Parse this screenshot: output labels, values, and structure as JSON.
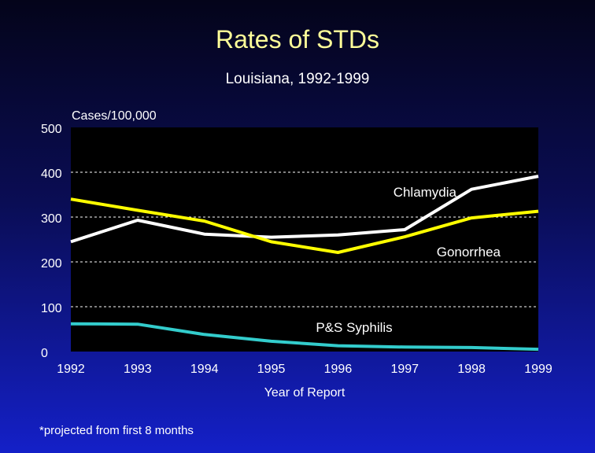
{
  "header": {
    "title": "Rates of STDs",
    "subtitle": "Louisiana, 1992-1999"
  },
  "footnote": "*projected from first 8 months",
  "chart_data": {
    "type": "line",
    "title": "Rates of STDs",
    "subtitle": "Louisiana, 1992-1999",
    "xlabel": "Year of Report",
    "ylabel": "Cases/100,000",
    "x": [
      "1992",
      "1993",
      "1994",
      "1995",
      "1996",
      "1997",
      "1998",
      "1999"
    ],
    "yticks": [
      0,
      100,
      200,
      300,
      400,
      500
    ],
    "ylim": [
      0,
      500
    ],
    "grid": true,
    "series": [
      {
        "name": "Chlamydia",
        "values": [
          245,
          293,
          262,
          255,
          260,
          272,
          362,
          391
        ],
        "color": "#ffffff"
      },
      {
        "name": "Gonorrhea",
        "values": [
          340,
          315,
          291,
          245,
          221,
          256,
          298,
          313
        ],
        "color": "#ffff00"
      },
      {
        "name": "P&S Syphilis",
        "values": [
          62,
          61,
          38,
          23,
          13,
          10,
          9,
          5
        ],
        "color": "#33cccc"
      }
    ]
  }
}
